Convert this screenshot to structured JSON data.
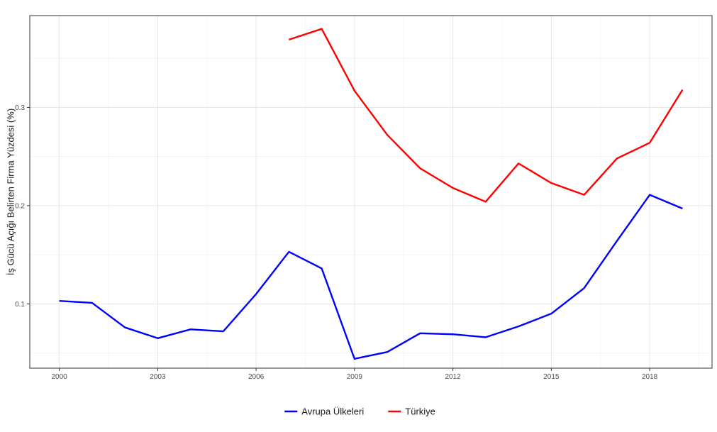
{
  "chart_data": {
    "type": "line",
    "ylabel": "İş Gücü Açığı Belirten Firma Yüzdesi (%)",
    "xlabel": "",
    "xlim": [
      1999.1,
      2019.9
    ],
    "ylim": [
      0.0345,
      0.3935
    ],
    "x_ticks": [
      2000,
      2003,
      2006,
      2009,
      2012,
      2015,
      2018
    ],
    "y_ticks": [
      0.1,
      0.2,
      0.3
    ],
    "grid": true,
    "legend_position": "bottom",
    "series": [
      {
        "name": "Avrupa Ülkeleri",
        "color": "#0000ff",
        "x": [
          2000,
          2001,
          2002,
          2003,
          2004,
          2005,
          2006,
          2007,
          2008,
          2009,
          2010,
          2011,
          2012,
          2013,
          2014,
          2015,
          2016,
          2017,
          2018,
          2019
        ],
        "values": [
          0.103,
          0.101,
          0.076,
          0.065,
          0.074,
          0.072,
          0.11,
          0.153,
          0.136,
          0.044,
          0.051,
          0.07,
          0.069,
          0.066,
          0.077,
          0.09,
          0.116,
          0.164,
          0.211,
          0.197
        ]
      },
      {
        "name": "Türkiye",
        "color": "#ff0000",
        "x": [
          2007,
          2008,
          2009,
          2010,
          2011,
          2012,
          2013,
          2014,
          2015,
          2016,
          2017,
          2018,
          2019
        ],
        "values": [
          0.369,
          0.38,
          0.317,
          0.272,
          0.238,
          0.218,
          0.204,
          0.243,
          0.223,
          0.211,
          0.248,
          0.264,
          0.318
        ]
      }
    ]
  }
}
